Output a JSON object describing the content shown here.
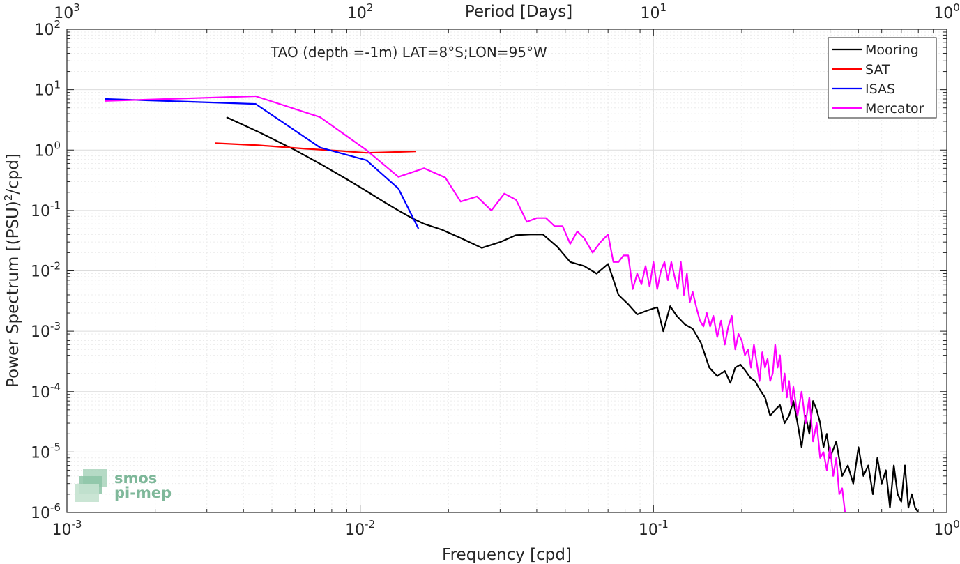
{
  "chart_data": {
    "type": "line",
    "scale": {
      "x": "log",
      "y": "log"
    },
    "xlabel": "Frequency [cpd]",
    "ylabel": "Power Spectrum [(PSU)^2/cpd]",
    "ylabel_parts": {
      "base": "Power Spectrum [(PSU)",
      "sup": "2",
      "tail": "/cpd]"
    },
    "x2label": "Period [Days]",
    "annotation": "TAO (depth =-1m) LAT=8°S;LON=95°W",
    "xlim": [
      0.001,
      1
    ],
    "ylim": [
      1e-06,
      100
    ],
    "xticks": [
      {
        "value": 0.001,
        "base": "10",
        "exp": "-3"
      },
      {
        "value": 0.01,
        "base": "10",
        "exp": "-2"
      },
      {
        "value": 0.1,
        "base": "10",
        "exp": "-1"
      },
      {
        "value": 1,
        "base": "10",
        "exp": "0"
      }
    ],
    "x2ticks": [
      {
        "value": 0.001,
        "base": "10",
        "exp": "3"
      },
      {
        "value": 0.01,
        "base": "10",
        "exp": "2"
      },
      {
        "value": 0.1,
        "base": "10",
        "exp": "1"
      },
      {
        "value": 1,
        "base": "10",
        "exp": "0"
      }
    ],
    "yticks": [
      {
        "value": 100,
        "base": "10",
        "exp": "2"
      },
      {
        "value": 10,
        "base": "10",
        "exp": "1"
      },
      {
        "value": 1,
        "base": "10",
        "exp": "0"
      },
      {
        "value": 0.1,
        "base": "10",
        "exp": "-1"
      },
      {
        "value": 0.01,
        "base": "10",
        "exp": "-2"
      },
      {
        "value": 0.001,
        "base": "10",
        "exp": "-3"
      },
      {
        "value": 0.0001,
        "base": "10",
        "exp": "-4"
      },
      {
        "value": 1e-05,
        "base": "10",
        "exp": "-5"
      },
      {
        "value": 1e-06,
        "base": "10",
        "exp": "-6"
      }
    ],
    "grid": true,
    "minor_grid": true,
    "legend_position": "top-right",
    "series": [
      {
        "name": "Mooring",
        "color": "#000000",
        "x": [
          0.0035,
          0.0045,
          0.006,
          0.0075,
          0.009,
          0.0105,
          0.012,
          0.0135,
          0.015,
          0.0165,
          0.019,
          0.022,
          0.026,
          0.03,
          0.034,
          0.038,
          0.042,
          0.047,
          0.052,
          0.058,
          0.064,
          0.07,
          0.076,
          0.082,
          0.088,
          0.095,
          0.103,
          0.108,
          0.114,
          0.12,
          0.128,
          0.136,
          0.145,
          0.155,
          0.165,
          0.175,
          0.183,
          0.19,
          0.198,
          0.206,
          0.214,
          0.222,
          0.23,
          0.24,
          0.25,
          0.26,
          0.27,
          0.28,
          0.29,
          0.3,
          0.31,
          0.32,
          0.33,
          0.34,
          0.35,
          0.36,
          0.37,
          0.38,
          0.39,
          0.4,
          0.42,
          0.44,
          0.46,
          0.48,
          0.5,
          0.52,
          0.54,
          0.56,
          0.58,
          0.6,
          0.62,
          0.64,
          0.66,
          0.68,
          0.7,
          0.72,
          0.74,
          0.76,
          0.78,
          0.8
        ],
        "y": [
          3.5,
          2.0,
          1.0,
          0.55,
          0.33,
          0.21,
          0.14,
          0.1,
          0.075,
          0.06,
          0.048,
          0.035,
          0.024,
          0.03,
          0.039,
          0.04,
          0.04,
          0.025,
          0.014,
          0.012,
          0.009,
          0.013,
          0.004,
          0.0028,
          0.0019,
          0.0022,
          0.0025,
          0.001,
          0.0026,
          0.0018,
          0.0013,
          0.0011,
          0.00065,
          0.00025,
          0.00018,
          0.00022,
          0.00014,
          0.00025,
          0.00028,
          0.00022,
          0.00017,
          0.00015,
          0.00011,
          8e-05,
          4e-05,
          5e-05,
          6e-05,
          3e-05,
          4e-05,
          7e-05,
          3e-05,
          1.2e-05,
          4e-05,
          2e-05,
          7e-05,
          5e-05,
          3e-05,
          1.2e-05,
          2e-05,
          8e-06,
          1.5e-05,
          4e-06,
          6e-06,
          3e-06,
          1.2e-05,
          4e-06,
          6e-06,
          2e-06,
          8e-06,
          3e-06,
          5e-06,
          1.2e-06,
          6e-06,
          2e-06,
          1.5e-06,
          6e-06,
          1.2e-06,
          2e-06,
          1.2e-06,
          1e-06
        ]
      },
      {
        "name": "SAT",
        "color": "#ff0000",
        "x": [
          0.0032,
          0.0045,
          0.0065,
          0.0085,
          0.0105,
          0.0125,
          0.0155
        ],
        "y": [
          1.3,
          1.2,
          1.05,
          0.97,
          0.9,
          0.92,
          0.95
        ]
      },
      {
        "name": "ISAS",
        "color": "#0000ff",
        "x": [
          0.00135,
          0.0044,
          0.0073,
          0.0105,
          0.0135,
          0.0158
        ],
        "y": [
          7.0,
          5.8,
          1.1,
          0.68,
          0.23,
          0.05
        ]
      },
      {
        "name": "Mercator",
        "color": "#ff00ff",
        "x": [
          0.00135,
          0.0044,
          0.0073,
          0.0105,
          0.0135,
          0.0165,
          0.0195,
          0.022,
          0.025,
          0.028,
          0.031,
          0.034,
          0.037,
          0.04,
          0.043,
          0.046,
          0.049,
          0.052,
          0.055,
          0.058,
          0.062,
          0.066,
          0.07,
          0.073,
          0.076,
          0.079,
          0.082,
          0.085,
          0.088,
          0.091,
          0.094,
          0.097,
          0.1,
          0.103,
          0.106,
          0.109,
          0.112,
          0.115,
          0.118,
          0.121,
          0.124,
          0.127,
          0.13,
          0.133,
          0.136,
          0.14,
          0.144,
          0.148,
          0.152,
          0.156,
          0.16,
          0.165,
          0.17,
          0.175,
          0.18,
          0.185,
          0.19,
          0.195,
          0.2,
          0.205,
          0.21,
          0.215,
          0.22,
          0.225,
          0.23,
          0.235,
          0.24,
          0.245,
          0.25,
          0.255,
          0.26,
          0.265,
          0.27,
          0.275,
          0.28,
          0.285,
          0.29,
          0.295,
          0.3,
          0.31,
          0.32,
          0.33,
          0.34,
          0.35,
          0.36,
          0.37,
          0.38,
          0.39,
          0.4,
          0.41,
          0.42,
          0.43,
          0.44,
          0.45
        ],
        "y": [
          6.5,
          7.8,
          3.5,
          1.0,
          0.36,
          0.5,
          0.35,
          0.14,
          0.17,
          0.1,
          0.19,
          0.15,
          0.065,
          0.075,
          0.075,
          0.055,
          0.055,
          0.028,
          0.045,
          0.035,
          0.02,
          0.03,
          0.04,
          0.014,
          0.014,
          0.018,
          0.018,
          0.005,
          0.009,
          0.006,
          0.012,
          0.0055,
          0.014,
          0.005,
          0.01,
          0.014,
          0.007,
          0.014,
          0.008,
          0.005,
          0.014,
          0.004,
          0.009,
          0.003,
          0.0045,
          0.0025,
          0.0015,
          0.0012,
          0.002,
          0.0012,
          0.0018,
          0.0008,
          0.0015,
          0.0006,
          0.0012,
          0.0018,
          0.0005,
          0.0009,
          0.0007,
          0.0004,
          0.0005,
          0.00025,
          0.0006,
          0.0003,
          0.00015,
          0.00045,
          0.00025,
          0.00035,
          0.00015,
          0.0002,
          0.0006,
          0.00025,
          0.0004,
          0.0001,
          0.0002,
          8e-05,
          0.00015,
          6e-05,
          0.00012,
          4e-05,
          0.0001,
          3e-05,
          8e-05,
          1.5e-05,
          3e-05,
          8e-06,
          1e-05,
          5e-06,
          1.2e-05,
          4e-06,
          8e-06,
          2e-06,
          2.5e-06,
          1e-06
        ]
      }
    ]
  },
  "watermark": {
    "line1": "smos",
    "line2": "pi-mep"
  }
}
